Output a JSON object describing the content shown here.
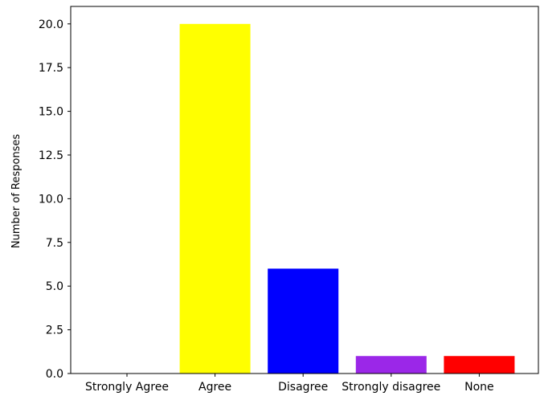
{
  "chart_data": {
    "type": "bar",
    "categories": [
      "Strongly Agree",
      "Agree",
      "Disagree",
      "Strongly disagree",
      "None"
    ],
    "values": [
      0,
      20,
      6,
      1,
      1
    ],
    "colors": [
      "#ffff00",
      "#ffff00",
      "#0000ff",
      "#9b27e8",
      "#ff0000"
    ],
    "xlabel": "",
    "ylabel": "Number of Responses",
    "ylim": [
      0,
      21
    ],
    "yticks": [
      0.0,
      2.5,
      5.0,
      7.5,
      10.0,
      12.5,
      15.0,
      17.5,
      20.0
    ],
    "ytick_labels": [
      "0.0",
      "2.5",
      "5.0",
      "7.5",
      "10.0",
      "12.5",
      "15.0",
      "17.5",
      "20.0"
    ],
    "grid": false,
    "legend": "none"
  }
}
